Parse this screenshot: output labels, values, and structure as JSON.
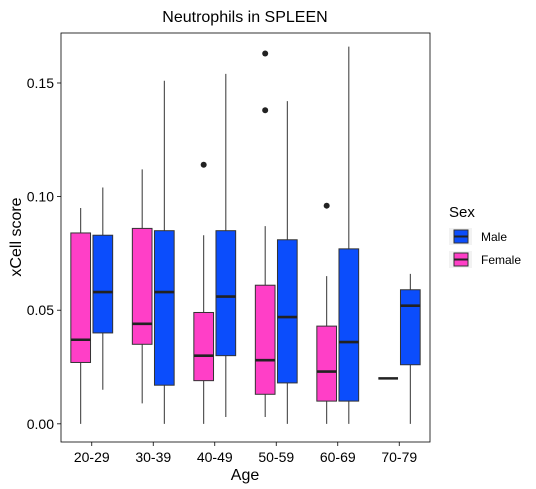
{
  "chart_data": {
    "type": "boxplot",
    "title": "Neutrophils in SPLEEN",
    "xlabel": "Age",
    "ylabel": "xCell score",
    "ylim": [
      -0.008,
      0.172
    ],
    "yticks": [
      0.0,
      0.05,
      0.1,
      0.15
    ],
    "ytick_labels": [
      "0.00",
      "0.05",
      "0.10",
      "0.15"
    ],
    "categories": [
      "20-29",
      "30-39",
      "40-49",
      "50-59",
      "60-69",
      "70-79"
    ],
    "grid": false,
    "legend": {
      "title": "Sex",
      "position": "right",
      "entries": [
        {
          "name": "Male",
          "color": "#0b4dfc"
        },
        {
          "name": "Female",
          "color": "#ff3fc7"
        }
      ]
    },
    "series": [
      {
        "name": "Female",
        "color": "#ff3fc7",
        "boxes": [
          {
            "category": "20-29",
            "whisker_low": 0.0,
            "q1": 0.027,
            "median": 0.037,
            "q3": 0.084,
            "whisker_high": 0.095,
            "outliers": []
          },
          {
            "category": "30-39",
            "whisker_low": 0.009,
            "q1": 0.035,
            "median": 0.044,
            "q3": 0.086,
            "whisker_high": 0.112,
            "outliers": []
          },
          {
            "category": "40-49",
            "whisker_low": 0.0,
            "q1": 0.019,
            "median": 0.03,
            "q3": 0.049,
            "whisker_high": 0.083,
            "outliers": [
              0.114
            ]
          },
          {
            "category": "50-59",
            "whisker_low": 0.003,
            "q1": 0.013,
            "median": 0.028,
            "q3": 0.061,
            "whisker_high": 0.087,
            "outliers": [
              0.138,
              0.163
            ]
          },
          {
            "category": "60-69",
            "whisker_low": 0.0,
            "q1": 0.01,
            "median": 0.023,
            "q3": 0.043,
            "whisker_high": 0.065,
            "outliers": [
              0.096
            ]
          },
          {
            "category": "70-79",
            "whisker_low": 0.02,
            "q1": 0.02,
            "median": 0.02,
            "q3": 0.02,
            "whisker_high": 0.02,
            "outliers": []
          }
        ]
      },
      {
        "name": "Male",
        "color": "#0b4dfc",
        "boxes": [
          {
            "category": "20-29",
            "whisker_low": 0.015,
            "q1": 0.04,
            "median": 0.058,
            "q3": 0.083,
            "whisker_high": 0.104,
            "outliers": []
          },
          {
            "category": "30-39",
            "whisker_low": 0.0,
            "q1": 0.017,
            "median": 0.058,
            "q3": 0.085,
            "whisker_high": 0.151,
            "outliers": []
          },
          {
            "category": "40-49",
            "whisker_low": 0.003,
            "q1": 0.03,
            "median": 0.056,
            "q3": 0.085,
            "whisker_high": 0.154,
            "outliers": []
          },
          {
            "category": "50-59",
            "whisker_low": 0.0,
            "q1": 0.018,
            "median": 0.047,
            "q3": 0.081,
            "whisker_high": 0.142,
            "outliers": []
          },
          {
            "category": "60-69",
            "whisker_low": 0.0,
            "q1": 0.01,
            "median": 0.036,
            "q3": 0.077,
            "whisker_high": 0.166,
            "outliers": []
          },
          {
            "category": "70-79",
            "whisker_low": 0.0,
            "q1": 0.026,
            "median": 0.052,
            "q3": 0.059,
            "whisker_high": 0.066,
            "outliers": []
          }
        ]
      }
    ]
  }
}
